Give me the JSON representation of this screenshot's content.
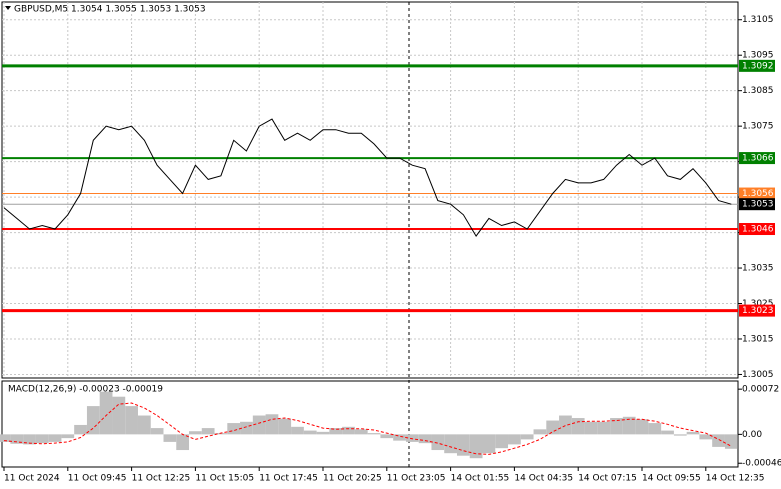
{
  "chart_data": [
    {
      "type": "line",
      "title": "GBPUSD,M5  1.3054 1.3055 1.3053 1.3053",
      "categories": [
        "11 Oct 2024",
        null,
        null,
        null,
        null,
        "11 Oct 09:45",
        null,
        null,
        null,
        null,
        "11 Oct 12:25",
        null,
        null,
        null,
        null,
        "11 Oct 15:05",
        null,
        null,
        null,
        null,
        "11 Oct 17:45",
        null,
        null,
        null,
        null,
        "11 Oct 20:25",
        null,
        null,
        null,
        null,
        "11 Oct 23:05",
        null,
        null,
        null,
        null,
        "14 Oct 01:55",
        null,
        null,
        null,
        null,
        "14 Oct 04:35",
        null,
        null,
        null,
        null,
        "14 Oct 07:15",
        null,
        null,
        null,
        null,
        "14 Oct 09:55",
        null,
        null,
        null,
        null,
        "14 Oct 12:35",
        null,
        null
      ],
      "values": [
        1.3052,
        1.3049,
        1.3046,
        1.3047,
        1.3046,
        1.305,
        1.3056,
        1.3071,
        1.3075,
        1.3074,
        1.3075,
        1.3071,
        1.3064,
        1.306,
        1.3056,
        1.3064,
        1.306,
        1.3061,
        1.3071,
        1.3068,
        1.3075,
        1.3077,
        1.3071,
        1.3073,
        1.3071,
        1.3074,
        1.3074,
        1.3073,
        1.3073,
        1.307,
        1.3066,
        1.3066,
        1.3064,
        1.3063,
        1.3054,
        1.3053,
        1.305,
        1.3044,
        1.3049,
        1.3047,
        1.3048,
        1.3046,
        1.3051,
        1.3056,
        1.306,
        1.3059,
        1.3059,
        1.306,
        1.3064,
        1.3067,
        1.3064,
        1.3066,
        1.3061,
        1.306,
        1.3063,
        1.3059,
        1.3054,
        1.3053
      ],
      "color": "#000000",
      "ylim": [
        1.3004,
        1.311
      ],
      "yticks": [
        1.3105,
        1.3095,
        1.3085,
        1.3075,
        1.3065,
        1.3055,
        1.3045,
        1.3035,
        1.3025,
        1.3015,
        1.3005
      ],
      "grid": true,
      "levels": [
        {
          "value": 1.3092,
          "color": "#008000",
          "style": "thick"
        },
        {
          "value": 1.3066,
          "color": "#008000",
          "style": "medium"
        },
        {
          "value": 1.3056,
          "color": "#ff7f27",
          "style": "thin"
        },
        {
          "value": 1.3053,
          "color": "#000000",
          "style": "current"
        },
        {
          "value": 1.3046,
          "color": "#ff0000",
          "style": "medium"
        },
        {
          "value": 1.3023,
          "color": "#ff0000",
          "style": "thick"
        }
      ]
    },
    {
      "type": "bar",
      "title": "MACD(12,26,9) -0.00023 -0.00019",
      "values": [
        -0.00012,
        -0.00015,
        -0.00016,
        -0.00014,
        -0.00012,
        -6e-05,
        0.00015,
        0.00045,
        0.00068,
        0.0006,
        0.00045,
        0.0003,
        0.0001,
        -0.00012,
        -0.00025,
        5e-05,
        0.0001,
        2e-05,
        0.00018,
        0.0002,
        0.0003,
        0.00032,
        0.00025,
        0.00012,
        6e-05,
        4e-05,
        0.0001,
        0.00012,
        8e-05,
        2e-05,
        -6e-05,
        -0.0001,
        -0.00012,
        -0.00014,
        -0.00025,
        -0.0003,
        -0.00034,
        -0.00038,
        -0.0003,
        -0.00022,
        -0.00016,
        -8e-05,
        8e-05,
        0.00022,
        0.0003,
        0.00026,
        0.0002,
        0.0002,
        0.00026,
        0.00028,
        0.00024,
        0.00018,
        6e-05,
        -2e-05,
        4e-05,
        -8e-05,
        -0.0002,
        -0.00023
      ],
      "color": "#c0c0c0",
      "signal_values": [
        -0.0001,
        -0.00012,
        -0.00014,
        -0.00015,
        -0.00014,
        -0.00012,
        -5e-05,
        0.0001,
        0.0003,
        0.00048,
        0.0005,
        0.00042,
        0.0003,
        0.00015,
        0,
        -8e-05,
        -3e-05,
        2e-05,
        6e-05,
        0.00012,
        0.00018,
        0.00024,
        0.00026,
        0.00022,
        0.00016,
        0.0001,
        8e-05,
        9e-05,
        9e-05,
        7e-05,
        2e-05,
        -3e-05,
        -7e-05,
        -0.0001,
        -0.00014,
        -0.0002,
        -0.00026,
        -0.00031,
        -0.00032,
        -0.00028,
        -0.00022,
        -0.00016,
        -8e-05,
        4e-05,
        0.00014,
        0.0002,
        0.00021,
        0.00021,
        0.00022,
        0.00024,
        0.00024,
        0.00021,
        0.00016,
        0.0001,
        6e-05,
        2e-05,
        -8e-05,
        -0.00019
      ],
      "signal_color": "#ff0000",
      "ylim": [
        -0.00052,
        0.00085
      ],
      "yticks": [
        0.00072,
        {
          "value": 0,
          "label": "0.00"
        },
        -0.00046
      ]
    }
  ]
}
